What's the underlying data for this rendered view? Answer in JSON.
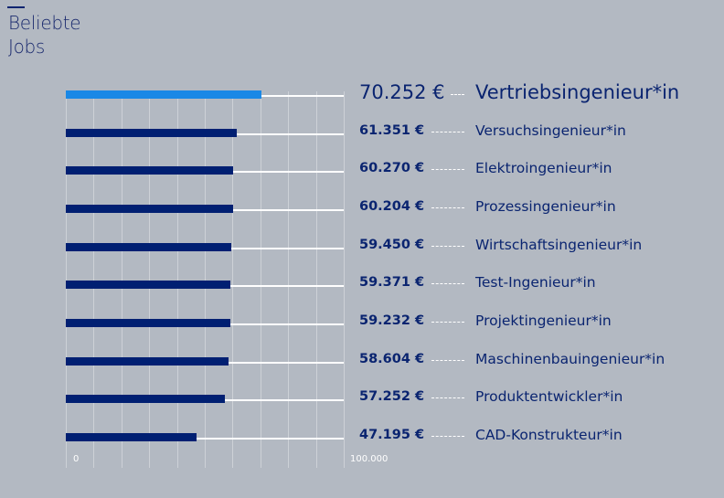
{
  "title_line1": "Beliebte",
  "title_line2": "Jobs",
  "chart_data": {
    "type": "bar",
    "orientation": "horizontal",
    "xlim": [
      0,
      100000
    ],
    "tick_labels": [
      "0",
      "100.000"
    ],
    "grid": true,
    "highlight_color": "#1a88e6",
    "bar_color": "#001f72",
    "categories": [
      "Vertriebsingenieur*in",
      "Versuchsingenieur*in",
      "Elektroingenieur*in",
      "Prozessingenieur*in",
      "Wirtschaftsingenieur*in",
      "Test-Ingenieur*in",
      "Projektingenieur*in",
      "Maschinenbauingenieur*in",
      "Produktentwickler*in",
      "CAD-Konstrukteur*in"
    ],
    "values": [
      70252,
      61351,
      60270,
      60204,
      59450,
      59371,
      59232,
      58604,
      57252,
      47195
    ],
    "value_labels": [
      "70.252 €",
      "61.351 €",
      "60.270 €",
      "60.204 €",
      "59.450 €",
      "59.371 €",
      "59.232 €",
      "58.604 €",
      "57.252 €",
      "47.195 €"
    ]
  }
}
